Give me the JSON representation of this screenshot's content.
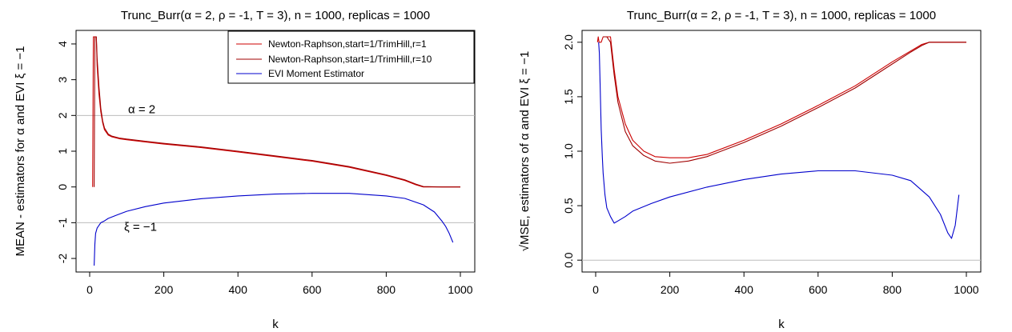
{
  "chart_data": [
    {
      "type": "line",
      "title": "Trunc_Burr(α = 2, ρ = -1, T = 3), n = 1000, replicas = 1000",
      "xlabel": "k",
      "ylabel": "MEAN - estimators for α and EVI ξ = −1",
      "xlim": [
        0,
        1000
      ],
      "ylim": [
        -2.2,
        4.2
      ],
      "x_ticks": [
        "0",
        "200",
        "400",
        "600",
        "800",
        "1000"
      ],
      "y_ticks": [
        "-2",
        "-1",
        "0",
        "1",
        "2",
        "3",
        "4"
      ],
      "grid": false,
      "legend_position": "top-right",
      "reference_lines": [
        {
          "y": 2,
          "label": "α = 2"
        },
        {
          "y": -1,
          "label": "ξ = −1"
        }
      ],
      "series": [
        {
          "name": "Newton-Raphson,start=1/TrimHill,r=1",
          "color": "#cc0000",
          "x": [
            8,
            10,
            12,
            15,
            18,
            20,
            25,
            30,
            35,
            40,
            50,
            60,
            80,
            100,
            150,
            200,
            300,
            400,
            500,
            600,
            700,
            800,
            850,
            880,
            900,
            950,
            1000
          ],
          "y": [
            0,
            4.2,
            4.2,
            4.2,
            4.2,
            3.4,
            2.6,
            2.1,
            1.8,
            1.6,
            1.45,
            1.4,
            1.35,
            1.32,
            1.26,
            1.2,
            1.1,
            0.98,
            0.85,
            0.72,
            0.55,
            0.32,
            0.18,
            0.06,
            0.0,
            0.0,
            0.0
          ]
        },
        {
          "name": "Newton-Raphson,start=1/TrimHill,r=10",
          "color": "#a00000",
          "x": [
            12,
            14,
            16,
            18,
            20,
            25,
            30,
            35,
            40,
            50,
            60,
            80,
            100,
            150,
            200,
            300,
            400,
            500,
            600,
            700,
            800,
            850,
            880,
            900,
            950,
            1000
          ],
          "y": [
            0,
            4.2,
            4.2,
            4.2,
            3.6,
            2.8,
            2.2,
            1.85,
            1.65,
            1.48,
            1.42,
            1.37,
            1.34,
            1.28,
            1.22,
            1.12,
            1.0,
            0.87,
            0.74,
            0.57,
            0.34,
            0.2,
            0.08,
            0.01,
            0.0,
            0.0
          ]
        },
        {
          "name": "EVI Moment Estimator",
          "color": "#0000cc",
          "x": [
            12,
            14,
            16,
            20,
            30,
            40,
            50,
            75,
            100,
            150,
            200,
            300,
            400,
            500,
            600,
            700,
            800,
            850,
            900,
            930,
            950,
            960,
            970,
            980
          ],
          "y": [
            -2.2,
            -1.6,
            -1.3,
            -1.15,
            -1.0,
            -0.95,
            -0.88,
            -0.78,
            -0.68,
            -0.55,
            -0.45,
            -0.33,
            -0.25,
            -0.2,
            -0.18,
            -0.18,
            -0.25,
            -0.32,
            -0.5,
            -0.7,
            -0.95,
            -1.1,
            -1.3,
            -1.55
          ]
        }
      ]
    },
    {
      "type": "line",
      "title": "Trunc_Burr(α = 2, ρ = -1, T = 3), n = 1000, replicas = 1000",
      "xlabel": "k",
      "ylabel": "√MSE, estimators of α and EVI ξ = −1",
      "xlim": [
        0,
        1000
      ],
      "ylim": [
        -0.05,
        2.05
      ],
      "x_ticks": [
        "0",
        "200",
        "400",
        "600",
        "800",
        "1000"
      ],
      "y_ticks": [
        "0.0",
        "0.5",
        "1.0",
        "1.5",
        "2.0"
      ],
      "grid": false,
      "reference_lines": [
        {
          "y": 0,
          "label": ""
        }
      ],
      "series": [
        {
          "name": "Newton-Raphson,start=1/TrimHill,r=1",
          "color": "#cc0000",
          "x": [
            5,
            7,
            9,
            15,
            20,
            30,
            40,
            50,
            60,
            80,
            100,
            130,
            160,
            200,
            250,
            300,
            400,
            500,
            600,
            700,
            800,
            850,
            880,
            900,
            920,
            1000
          ],
          "y": [
            2.0,
            2.05,
            2.0,
            2.0,
            2.05,
            2.05,
            2.05,
            1.75,
            1.5,
            1.25,
            1.1,
            1.0,
            0.95,
            0.94,
            0.94,
            0.97,
            1.1,
            1.25,
            1.42,
            1.6,
            1.82,
            1.92,
            1.98,
            2.0,
            2.0,
            2.0
          ]
        },
        {
          "name": "Newton-Raphson,start=1/TrimHill,r=10",
          "color": "#a00000",
          "x": [
            20,
            30,
            40,
            50,
            60,
            80,
            100,
            130,
            160,
            200,
            250,
            300,
            400,
            500,
            600,
            700,
            800,
            850,
            880,
            900,
            920,
            1000
          ],
          "y": [
            2.05,
            2.05,
            2.0,
            1.7,
            1.45,
            1.18,
            1.05,
            0.96,
            0.91,
            0.89,
            0.91,
            0.95,
            1.08,
            1.23,
            1.4,
            1.58,
            1.8,
            1.91,
            1.97,
            2.0,
            2.0,
            2.0
          ]
        },
        {
          "name": "EVI Moment Estimator",
          "color": "#0000cc",
          "x": [
            8,
            10,
            12,
            15,
            18,
            20,
            25,
            30,
            40,
            50,
            60,
            80,
            100,
            150,
            200,
            300,
            400,
            500,
            600,
            700,
            800,
            850,
            900,
            930,
            950,
            960,
            970,
            980
          ],
          "y": [
            2.0,
            1.9,
            1.6,
            1.2,
            0.95,
            0.8,
            0.6,
            0.48,
            0.4,
            0.34,
            0.36,
            0.4,
            0.45,
            0.52,
            0.58,
            0.67,
            0.74,
            0.79,
            0.82,
            0.82,
            0.78,
            0.73,
            0.58,
            0.42,
            0.25,
            0.2,
            0.32,
            0.6
          ]
        }
      ]
    }
  ]
}
